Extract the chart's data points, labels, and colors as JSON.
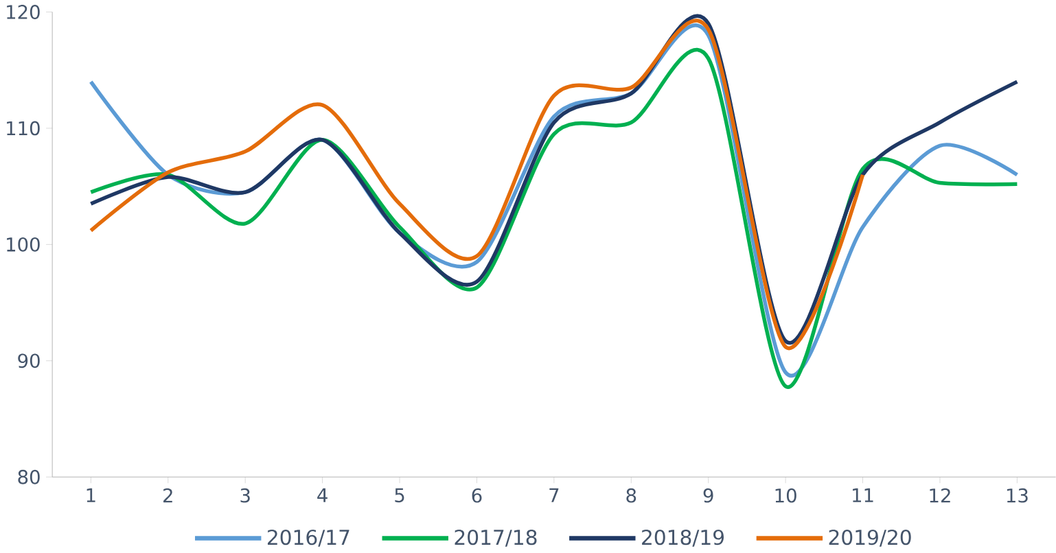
{
  "chart_data": {
    "type": "line",
    "categories": [
      "1",
      "2",
      "3",
      "4",
      "5",
      "6",
      "7",
      "8",
      "9",
      "10",
      "11",
      "12",
      "13"
    ],
    "series": [
      {
        "name": "2016/17",
        "color": "#5b9bd5",
        "values": [
          114,
          106,
          104.5,
          109,
          101,
          98.5,
          111,
          113,
          118,
          89,
          101.5,
          108.5,
          106
        ]
      },
      {
        "name": "2017/18",
        "color": "#00b050",
        "values": [
          104.5,
          106,
          101.8,
          109,
          101.5,
          96.3,
          109.5,
          110.5,
          116,
          87.8,
          106.5,
          105.3,
          105.2
        ]
      },
      {
        "name": "2018/19",
        "color": "#1f3864",
        "values": [
          103.5,
          105.8,
          104.5,
          109,
          101,
          96.8,
          110.5,
          113,
          119,
          91.7,
          106,
          110.5,
          114
        ]
      },
      {
        "name": "2019/20",
        "color": "#e46c0a",
        "values": [
          101.2,
          106.2,
          108,
          112,
          103.5,
          99,
          112.8,
          113.5,
          118.5,
          91.2,
          106,
          null,
          null
        ]
      }
    ],
    "ylim": [
      80,
      120
    ],
    "yticks": [
      80,
      90,
      100,
      110,
      120
    ],
    "grid": false,
    "legend": "bottom",
    "marker": "none",
    "line_style": "solid"
  }
}
